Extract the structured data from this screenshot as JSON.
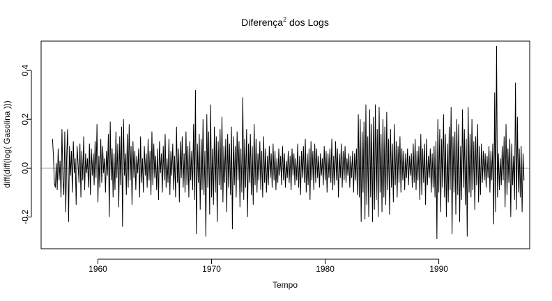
{
  "chart_data": {
    "type": "line",
    "title": "Diferença",
    "title_superscript": "2",
    "title_suffix": " dos Logs",
    "xlabel": "Tempo",
    "ylabel": "diff(diff(log( Gasolina )))",
    "xlim": [
      1955.0,
      1998.0
    ],
    "ylim": [
      -0.33,
      0.52
    ],
    "x_ticks": [
      1960,
      1970,
      1980,
      1990
    ],
    "y_ticks": [
      -0.2,
      0.0,
      0.2,
      0.4
    ],
    "x_tick_labels": [
      "1960",
      "1970",
      "1980",
      "1990"
    ],
    "y_tick_labels": [
      "-0.2",
      "0.0",
      "0.2",
      "0.4"
    ],
    "reference_line": {
      "y": 0.0,
      "color": "#a8a8a8"
    },
    "grid": false,
    "line_color": "#000000",
    "series": [
      {
        "x_start": 1956.0,
        "x_step": 0.08333333,
        "values": [
          0.12,
          0.05,
          -0.06,
          -0.08,
          0.02,
          -0.09,
          0.08,
          -0.05,
          0.03,
          -0.12,
          0.16,
          -0.04,
          -0.11,
          0.15,
          -0.18,
          0.05,
          0.16,
          -0.22,
          0.09,
          -0.03,
          0.07,
          -0.1,
          0.11,
          -0.02,
          0.04,
          -0.15,
          0.09,
          0.02,
          -0.06,
          0.1,
          -0.12,
          0.07,
          -0.05,
          0.13,
          -0.09,
          0.06,
          -0.02,
          0.04,
          -0.08,
          0.1,
          -0.11,
          0.08,
          -0.03,
          0.06,
          -0.07,
          0.11,
          -0.04,
          0.18,
          -0.14,
          0.05,
          -0.08,
          0.12,
          -0.06,
          0.09,
          -0.02,
          0.04,
          -0.1,
          0.07,
          -0.03,
          0.14,
          -0.2,
          0.19,
          -0.05,
          0.08,
          -0.12,
          0.06,
          -0.09,
          0.15,
          -0.04,
          0.1,
          -0.16,
          0.13,
          -0.07,
          0.17,
          -0.24,
          0.2,
          -0.03,
          0.06,
          -0.11,
          0.14,
          -0.08,
          0.18,
          -0.05,
          0.09,
          -0.15,
          0.11,
          -0.04,
          0.07,
          -0.09,
          0.05,
          -0.02,
          0.08,
          -0.12,
          0.13,
          -0.06,
          0.04,
          -0.1,
          0.09,
          -0.03,
          0.06,
          -0.08,
          0.12,
          -0.05,
          0.07,
          -0.11,
          0.15,
          -0.07,
          0.1,
          -0.04,
          0.05,
          -0.09,
          0.08,
          -0.13,
          0.11,
          -0.02,
          0.06,
          -0.1,
          0.09,
          -0.05,
          0.14,
          -0.08,
          0.04,
          -0.06,
          0.12,
          -0.11,
          0.07,
          -0.03,
          0.1,
          -0.09,
          0.05,
          -0.12,
          0.17,
          -0.06,
          0.08,
          -0.14,
          0.11,
          -0.04,
          0.13,
          -0.08,
          0.06,
          -0.1,
          0.15,
          -0.07,
          0.09,
          -0.12,
          0.11,
          -0.05,
          0.07,
          -0.09,
          0.18,
          -0.13,
          0.32,
          -0.27,
          0.1,
          -0.06,
          0.14,
          -0.17,
          0.12,
          -0.09,
          0.2,
          -0.11,
          0.07,
          -0.28,
          0.22,
          -0.08,
          0.15,
          -0.19,
          0.26,
          -0.12,
          0.08,
          -0.15,
          0.17,
          -0.1,
          0.13,
          -0.22,
          0.11,
          -0.07,
          0.16,
          -0.09,
          0.21,
          -0.14,
          0.09,
          -0.06,
          0.12,
          -0.18,
          0.14,
          -0.08,
          0.1,
          -0.11,
          0.17,
          -0.25,
          0.13,
          -0.07,
          0.09,
          -0.12,
          0.15,
          -0.05,
          0.11,
          -0.16,
          0.08,
          -0.1,
          0.29,
          -0.13,
          0.12,
          -0.08,
          0.16,
          -0.2,
          0.1,
          -0.06,
          0.14,
          -0.11,
          0.09,
          -0.15,
          0.18,
          -0.07,
          0.12,
          -0.1,
          0.06,
          -0.05,
          0.11,
          -0.09,
          0.07,
          -0.12,
          0.13,
          -0.06,
          0.08,
          -0.1,
          0.05,
          -0.07,
          0.09,
          -0.04,
          0.06,
          -0.08,
          0.1,
          -0.05,
          0.07,
          -0.09,
          0.04,
          -0.06,
          0.08,
          -0.03,
          0.05,
          -0.07,
          0.09,
          -0.05,
          0.06,
          -0.08,
          0.03,
          -0.04,
          0.07,
          -0.06,
          0.05,
          -0.09,
          0.08,
          -0.03,
          0.06,
          -0.07,
          0.04,
          -0.05,
          0.1,
          -0.08,
          0.05,
          -0.11,
          0.07,
          -0.04,
          0.09,
          -0.06,
          0.12,
          -0.1,
          0.06,
          -0.07,
          0.08,
          -0.13,
          0.11,
          -0.05,
          0.07,
          -0.09,
          0.1,
          -0.06,
          0.08,
          -0.04,
          0.05,
          -0.08,
          0.06,
          -0.03,
          0.04,
          -0.07,
          0.09,
          -0.05,
          0.07,
          -0.1,
          0.06,
          -0.04,
          0.08,
          -0.06,
          0.12,
          -0.09,
          0.05,
          -0.07,
          0.11,
          -0.05,
          0.08,
          -0.12,
          0.06,
          -0.04,
          0.1,
          -0.08,
          0.07,
          -0.05,
          0.09,
          -0.06,
          0.04,
          -0.03,
          0.06,
          -0.08,
          0.05,
          -0.04,
          0.07,
          -0.1,
          0.06,
          -0.05,
          0.08,
          -0.11,
          0.22,
          -0.12,
          0.2,
          -0.22,
          0.15,
          -0.1,
          0.19,
          -0.21,
          0.26,
          -0.15,
          0.13,
          -0.2,
          0.24,
          -0.12,
          0.18,
          -0.22,
          0.21,
          -0.17,
          0.26,
          -0.13,
          0.16,
          -0.2,
          0.25,
          -0.1,
          0.14,
          -0.18,
          0.2,
          -0.12,
          0.17,
          -0.15,
          0.23,
          -0.09,
          0.12,
          -0.19,
          0.16,
          -0.08,
          0.1,
          -0.14,
          0.18,
          -0.07,
          0.11,
          -0.12,
          0.09,
          -0.06,
          0.13,
          -0.1,
          0.08,
          -0.05,
          0.07,
          -0.09,
          0.06,
          -0.04,
          0.08,
          -0.07,
          0.05,
          -0.03,
          0.06,
          -0.08,
          0.1,
          -0.06,
          0.12,
          -0.09,
          0.07,
          -0.05,
          0.09,
          -0.13,
          0.14,
          -0.11,
          0.08,
          -0.06,
          0.1,
          -0.15,
          0.12,
          -0.07,
          0.05,
          -0.04,
          0.08,
          -0.1,
          0.06,
          -0.08,
          0.09,
          -0.12,
          0.11,
          -0.29,
          0.2,
          -0.1,
          0.16,
          -0.18,
          0.12,
          -0.08,
          0.22,
          -0.12,
          0.14,
          -0.2,
          0.1,
          -0.14,
          0.17,
          -0.09,
          0.25,
          -0.27,
          0.13,
          -0.1,
          0.15,
          -0.19,
          0.2,
          -0.11,
          0.18,
          -0.22,
          0.09,
          -0.13,
          0.24,
          -0.08,
          0.16,
          -0.15,
          0.12,
          -0.28,
          0.25,
          -0.1,
          0.14,
          -0.12,
          0.2,
          -0.09,
          0.11,
          -0.17,
          0.13,
          -0.07,
          0.18,
          -0.14,
          0.09,
          -0.11,
          0.1,
          -0.06,
          0.07,
          -0.05,
          0.06,
          -0.08,
          0.05,
          -0.04,
          0.09,
          -0.1,
          0.07,
          -0.05,
          0.1,
          -0.23,
          0.31,
          -0.18,
          0.5,
          -0.12,
          0.06,
          -0.09,
          0.04,
          -0.07,
          0.09,
          -0.05,
          0.13,
          -0.16,
          0.18,
          -0.11,
          0.08,
          -0.06,
          0.12,
          -0.2,
          0.1,
          -0.07,
          0.05,
          -0.13,
          0.35,
          -0.17,
          0.21,
          -0.1,
          0.08,
          -0.12,
          0.09,
          -0.18,
          0.06,
          -0.05
        ]
      }
    ]
  }
}
